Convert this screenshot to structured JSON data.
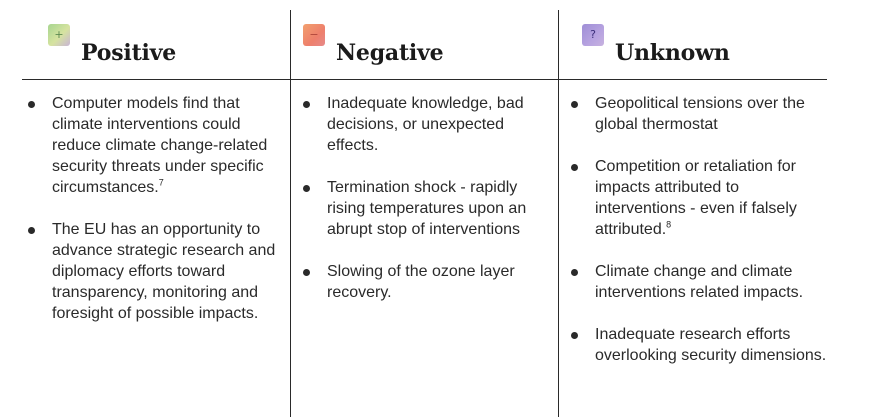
{
  "columns": [
    {
      "title": "Positive",
      "icon": "plus-icon",
      "icon_glyph": "+",
      "items": [
        {
          "text": "Computer models find that climate interventions could reduce climate change-related security threats under specific circumstances.",
          "sup": "7"
        },
        {
          "text": "The EU has an opportunity to advance strategic research and diplomacy efforts toward transparency, monitoring and foresight of possible impacts.",
          "sup": ""
        }
      ]
    },
    {
      "title": "Negative",
      "icon": "minus-icon",
      "icon_glyph": "−",
      "items": [
        {
          "text": "Inadequate knowledge, bad decisions, or unexpected effects.",
          "sup": ""
        },
        {
          "text": "Termination shock - rapidly rising temperatures upon an abrupt stop of interventions",
          "sup": ""
        },
        {
          "text": "Slowing of the ozone layer recovery.",
          "sup": ""
        }
      ]
    },
    {
      "title": "Unknown",
      "icon": "question-icon",
      "icon_glyph": "?",
      "items": [
        {
          "text": "Geopolitical tensions over the global thermostat",
          "sup": ""
        },
        {
          "text": "Competition or retaliation for impacts attributed to interventions - even if falsely attributed.",
          "sup": "8"
        },
        {
          "text": "Climate change and climate interventions related impacts.",
          "sup": ""
        },
        {
          "text": "Inadequate research efforts overlooking security dimensions.",
          "sup": ""
        }
      ]
    }
  ]
}
